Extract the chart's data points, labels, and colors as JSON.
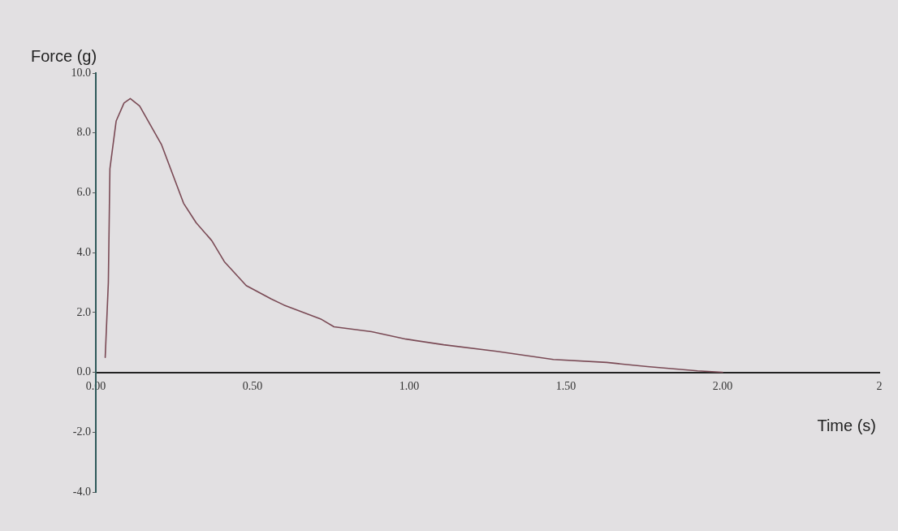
{
  "chart_data": {
    "type": "line",
    "xlabel": "Time (s)",
    "ylabel": "Force (g)",
    "x": [
      0.03,
      0.04,
      0.045,
      0.065,
      0.09,
      0.11,
      0.14,
      0.21,
      0.28,
      0.32,
      0.37,
      0.41,
      0.48,
      0.56,
      0.6,
      0.72,
      0.76,
      0.88,
      0.99,
      1.11,
      1.28,
      1.46,
      1.63,
      1.76,
      1.92,
      2.0
    ],
    "series": [
      {
        "color": "#7a4a55",
        "values": [
          0.5,
          3.0,
          6.8,
          8.4,
          9.0,
          9.15,
          8.9,
          7.6,
          5.65,
          5.0,
          4.4,
          3.7,
          2.9,
          2.45,
          2.25,
          1.77,
          1.52,
          1.36,
          1.11,
          0.92,
          0.7,
          0.43,
          0.33,
          0.19,
          0.05,
          0.0
        ]
      }
    ],
    "xlim": [
      0,
      2.5
    ],
    "xticks": [
      {
        "value": 0,
        "label": "0.00"
      },
      {
        "value": 0.5,
        "label": "0.50"
      },
      {
        "value": 1,
        "label": "1.00"
      },
      {
        "value": 1.5,
        "label": "1.50"
      },
      {
        "value": 2,
        "label": "2.00"
      },
      {
        "value": 2.5,
        "label": "2"
      }
    ],
    "ylim": [
      -4,
      10
    ],
    "yticks": [
      {
        "value": -4,
        "label": "-4.0"
      },
      {
        "value": -2,
        "label": "-2.0"
      },
      {
        "value": 0,
        "label": "0.0"
      },
      {
        "value": 2,
        "label": "2.0"
      },
      {
        "value": 4,
        "label": "4.0"
      },
      {
        "value": 6,
        "label": "6.0"
      },
      {
        "value": 8,
        "label": "8.0"
      },
      {
        "value": 10,
        "label": "10.0"
      }
    ],
    "grid": false,
    "legend": false,
    "marker": "none",
    "line_style": "solid"
  }
}
